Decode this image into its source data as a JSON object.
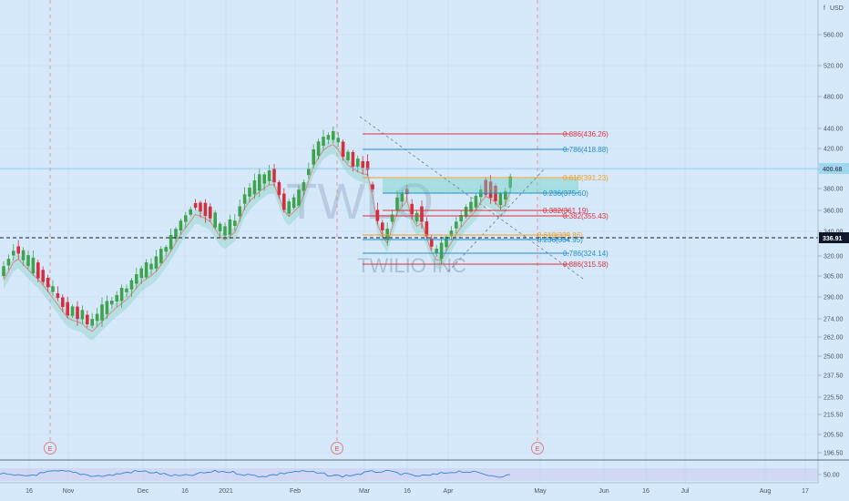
{
  "chart_data": {
    "type": "candlestick",
    "symbol_watermark": "TWLO",
    "company_watermark": "TWILIO INC",
    "currency": "USD",
    "price_axis_label": "f",
    "last_price": "400.68",
    "reference_price": "336.91",
    "y_ticks": [
      "560.00",
      "520.00",
      "480.00",
      "440.00",
      "420.00",
      "400.00",
      "380.00",
      "360.00",
      "340.00",
      "320.00",
      "305.00",
      "290.00",
      "274.00",
      "262.00",
      "250.00",
      "237.50",
      "225.50",
      "215.50",
      "205.50",
      "196.50",
      "50.00"
    ],
    "x_ticks": [
      "16",
      "Nov",
      "Dec",
      "16",
      "2021",
      "Feb",
      "Mar",
      "16",
      "Apr",
      "May",
      "Jun",
      "16",
      "Jul",
      "Aug",
      "17"
    ],
    "fib_levels": [
      {
        "label": "0.886(436.26)",
        "color": "#e0303a"
      },
      {
        "label": "0.786(418.88)",
        "color": "#1e90c8"
      },
      {
        "label": "0.618(391.23)",
        "color": "#f0a020"
      },
      {
        "label": "0.236(375.60)",
        "color": "#1e90c8"
      },
      {
        "label": "0.382(361.19)",
        "color": "#e0303a"
      },
      {
        "label": "0.382(355.43)",
        "color": "#e0303a"
      },
      {
        "label": "0.618(339.86)",
        "color": "#f0a020"
      },
      {
        "label": "0.236(334.95)",
        "color": "#1e90c8"
      },
      {
        "label": "0.786(324.14)",
        "color": "#1e90c8"
      },
      {
        "label": "0.886(315.58)",
        "color": "#e0303a"
      }
    ],
    "earnings_marker": "E",
    "colors": {
      "up": "#3fa34d",
      "down": "#d62f3c",
      "ma": "#e08080",
      "band": "#8fd3c6",
      "accent": "#1e90c8"
    }
  }
}
